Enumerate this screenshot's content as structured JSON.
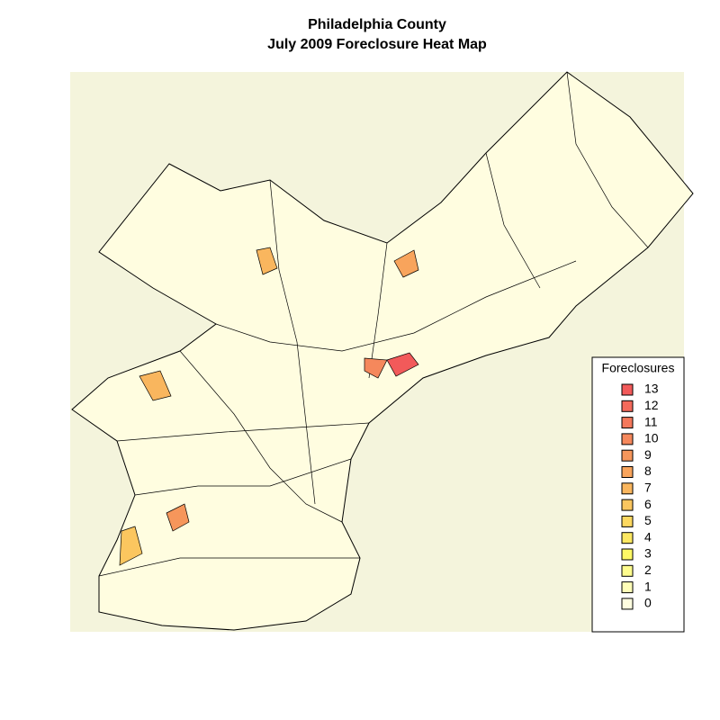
{
  "title": [
    "Philadelphia County",
    "July 2009 Foreclosure Heat Map"
  ],
  "legend": {
    "title": "Foreclosures",
    "entries": [
      {
        "value": 13,
        "color": "#f25a5a"
      },
      {
        "value": 12,
        "color": "#f36a5b"
      },
      {
        "value": 11,
        "color": "#f4785b"
      },
      {
        "value": 10,
        "color": "#f5885c"
      },
      {
        "value": 9,
        "color": "#f6965b"
      },
      {
        "value": 8,
        "color": "#f8a45c"
      },
      {
        "value": 7,
        "color": "#f9b65e"
      },
      {
        "value": 6,
        "color": "#fbc65f"
      },
      {
        "value": 5,
        "color": "#fcd860"
      },
      {
        "value": 4,
        "color": "#fde862"
      },
      {
        "value": 3,
        "color": "#fef965"
      },
      {
        "value": 2,
        "color": "#fefc8e"
      },
      {
        "value": 1,
        "color": "#fefdb8"
      },
      {
        "value": 0,
        "color": "#fffee0"
      }
    ]
  }
}
